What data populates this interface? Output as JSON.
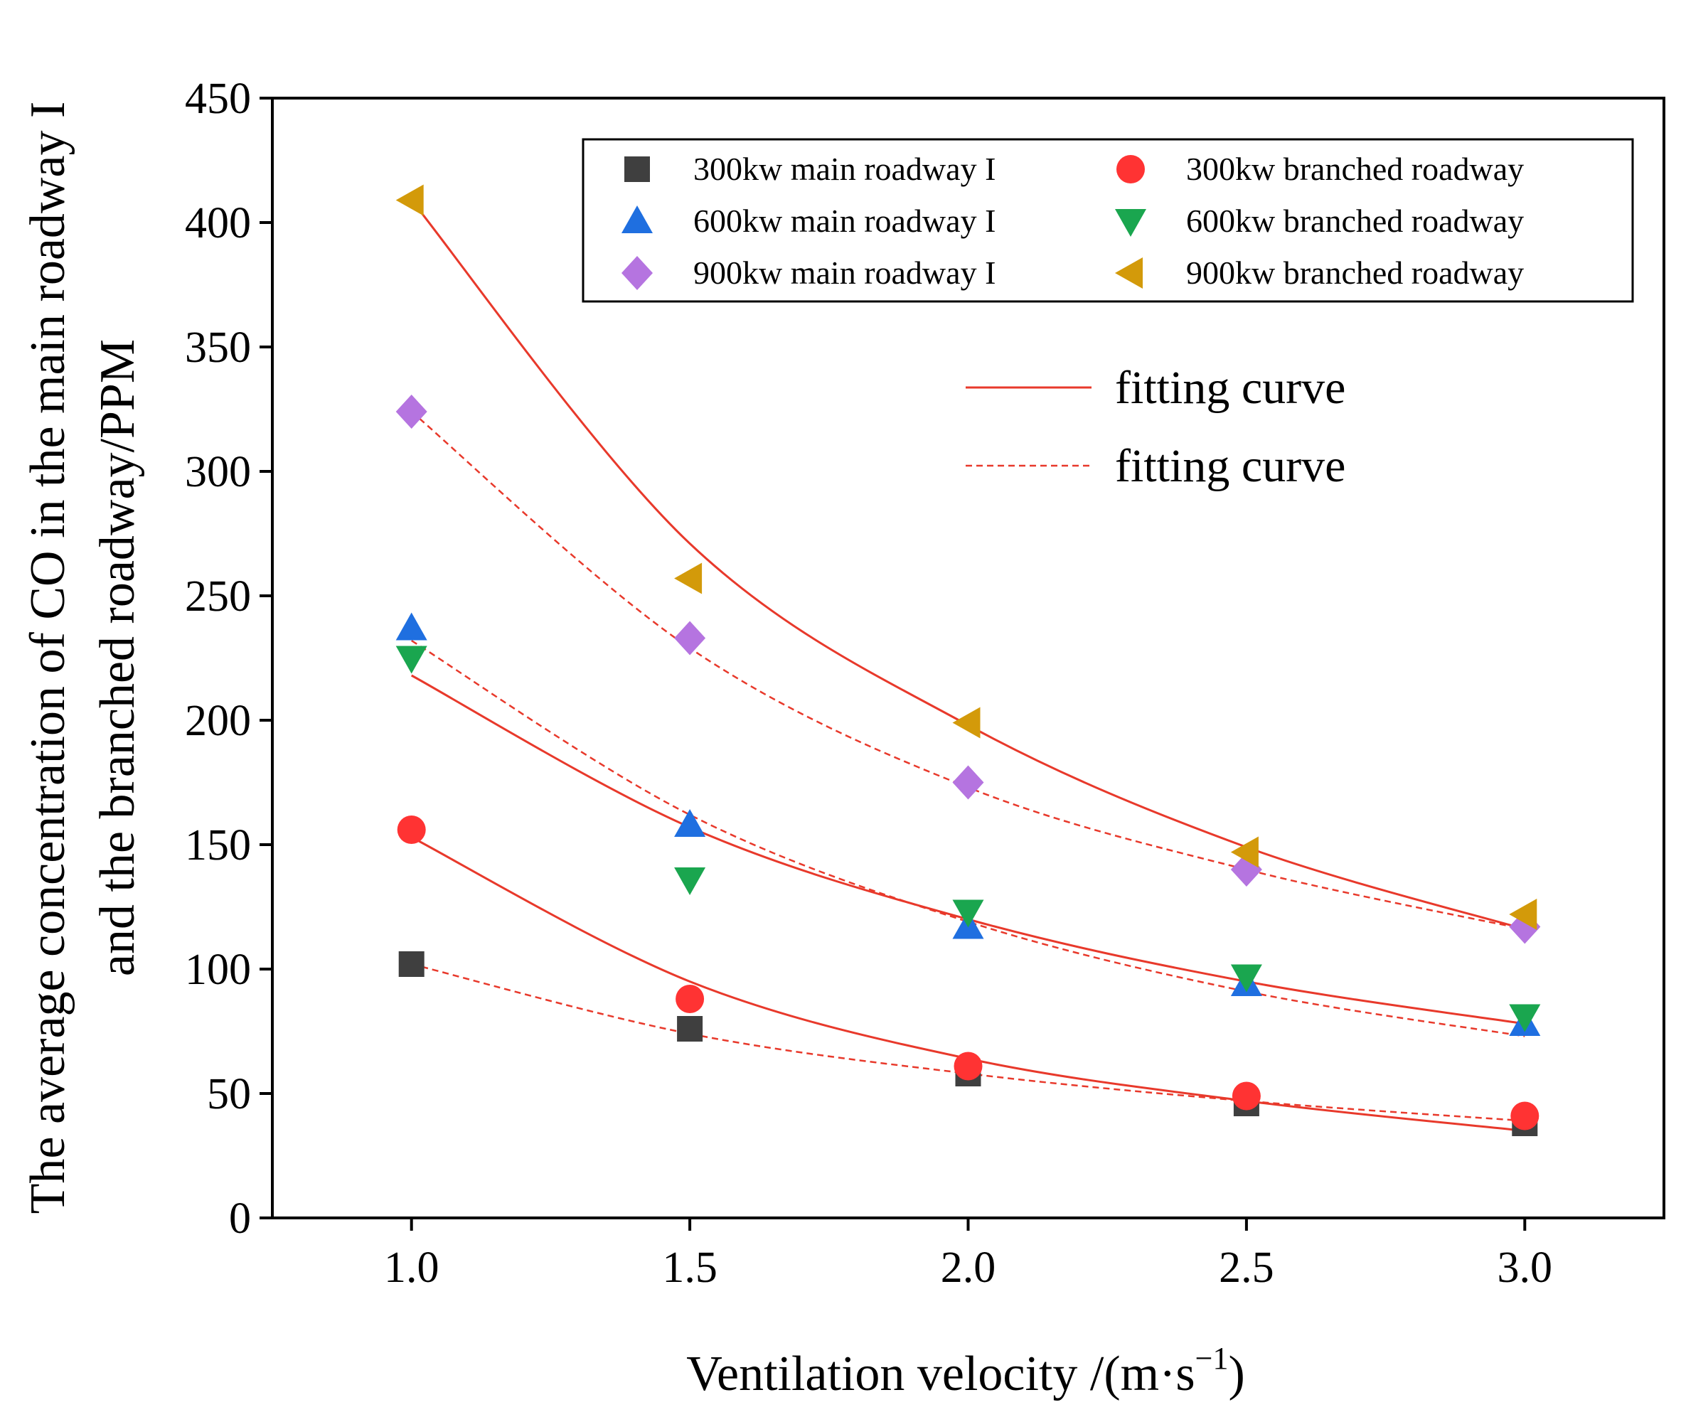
{
  "chart_data": {
    "type": "scatter",
    "title": "",
    "xlabel": "Ventilation velocity /(m·s",
    "xlabel_superscript": "−1",
    "xlabel_suffix": ")",
    "ylabel_line1": "The average concentration of CO in the main roadway I",
    "ylabel_line2": "and the branched roadway/PPM",
    "xlim": [
      0.75,
      3.25
    ],
    "ylim": [
      0,
      450
    ],
    "x_ticks": [
      1.0,
      1.5,
      2.0,
      2.5,
      3.0
    ],
    "x_tick_labels": [
      "1.0",
      "1.5",
      "2.0",
      "2.5",
      "3.0"
    ],
    "y_ticks": [
      0,
      50,
      100,
      150,
      200,
      250,
      300,
      350,
      400,
      450
    ],
    "y_tick_labels": [
      "0",
      "50",
      "100",
      "150",
      "200",
      "250",
      "300",
      "350",
      "400",
      "450"
    ],
    "grid": false,
    "legend_position": "top-right",
    "x": [
      1.0,
      1.5,
      2.0,
      2.5,
      3.0
    ],
    "series": [
      {
        "name": "300kw main roadway I",
        "marker": "square",
        "color": "#3f3f3f",
        "values": [
          102,
          76,
          58,
          46,
          38
        ]
      },
      {
        "name": "300kw branched roadway",
        "marker": "circle",
        "color": "#ff3333",
        "values": [
          156,
          88,
          61,
          49,
          41
        ]
      },
      {
        "name": "600kw main roadway I",
        "marker": "triangle-up",
        "color": "#1f6fe0",
        "values": [
          237,
          158,
          117,
          94,
          78
        ]
      },
      {
        "name": "600kw branched roadway",
        "marker": "triangle-down",
        "color": "#1aa64f",
        "values": [
          225,
          136,
          123,
          97,
          81
        ]
      },
      {
        "name": "900kw main roadway I",
        "marker": "diamond",
        "color": "#b574e0",
        "values": [
          324,
          233,
          175,
          140,
          117
        ]
      },
      {
        "name": "900kw branched roadway",
        "marker": "triangle-left",
        "color": "#d39a0a",
        "values": [
          409,
          257,
          199,
          147,
          122
        ]
      }
    ],
    "fitting_curves": [
      {
        "style": "solid",
        "color": "#e8392b",
        "values": [
          409,
          271,
          198,
          149,
          116
        ]
      },
      {
        "style": "dashed",
        "color": "#e8392b",
        "values": [
          324,
          229,
          173,
          140,
          116
        ]
      },
      {
        "style": "dashed",
        "color": "#e8392b",
        "values": [
          232,
          162,
          119,
          91,
          73
        ]
      },
      {
        "style": "solid",
        "color": "#e8392b",
        "values": [
          218,
          157,
          120,
          95,
          78
        ]
      },
      {
        "style": "solid",
        "color": "#e8392b",
        "values": [
          153,
          95,
          64,
          47,
          35
        ]
      },
      {
        "style": "dashed",
        "color": "#e8392b",
        "values": [
          102,
          74,
          58,
          47,
          39
        ]
      }
    ],
    "fit_legend": [
      {
        "label": "fitting curve",
        "style": "solid"
      },
      {
        "label": "fitting curve",
        "style": "dashed"
      }
    ]
  }
}
